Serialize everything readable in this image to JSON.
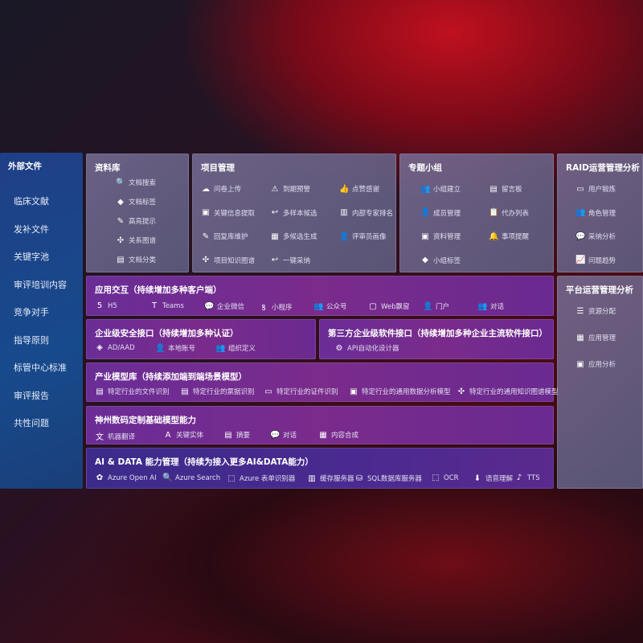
{
  "external": {
    "title": "外部文件",
    "items": [
      "临床文献",
      "发补文件",
      "关键字池",
      "审评培训内容",
      "竞争对手",
      "指导原则",
      "标管中心标准",
      "审评报告",
      "共性问题"
    ]
  },
  "library": {
    "title": "资料库",
    "items": [
      {
        "icon": "doc-search-icon",
        "g": "🔍",
        "label": "文档搜索"
      },
      {
        "icon": "tag-icon",
        "g": "◆",
        "label": "文档标签"
      },
      {
        "icon": "pen-icon",
        "g": "✎",
        "label": "高亮提示"
      },
      {
        "icon": "graph-icon",
        "g": "✣",
        "label": "关系图谱"
      },
      {
        "icon": "doc-classify-icon",
        "g": "▤",
        "label": "文档分类"
      }
    ]
  },
  "project": {
    "title": "项目管理",
    "items": [
      {
        "icon": "cloud-upload-icon",
        "g": "☁",
        "label": "问卷上传"
      },
      {
        "icon": "alarm-icon",
        "g": "⚠",
        "label": "到期预警"
      },
      {
        "icon": "thumbs-up-icon",
        "g": "👍",
        "label": "点赞感谢"
      },
      {
        "icon": "info-extract-icon",
        "g": "▣",
        "label": "关键信息提取"
      },
      {
        "icon": "reply-icon",
        "g": "↩",
        "label": "多样本候选"
      },
      {
        "icon": "ranking-icon",
        "g": "▥",
        "label": "内部专家排名"
      },
      {
        "icon": "edit-icon",
        "g": "✎",
        "label": "回复库维护"
      },
      {
        "icon": "puzzle-icon",
        "g": "▦",
        "label": "多候选生成"
      },
      {
        "icon": "user-icon",
        "g": "👤",
        "label": "评审员画像"
      },
      {
        "icon": "knowledge-graph-icon",
        "g": "✣",
        "label": "项目知识图谱"
      },
      {
        "icon": "reply-icon",
        "g": "↩",
        "label": "一键采纳"
      }
    ]
  },
  "groups": {
    "title": "专题小组",
    "items": [
      {
        "icon": "group-icon",
        "g": "👥",
        "label": "小组建立"
      },
      {
        "icon": "bbs-icon",
        "g": "▤",
        "label": "留言板"
      },
      {
        "icon": "member-icon",
        "g": "👤",
        "label": "成员管理"
      },
      {
        "icon": "clipboard-icon",
        "g": "📋",
        "label": "代办列表"
      },
      {
        "icon": "folder-icon",
        "g": "▣",
        "label": "资料管理"
      },
      {
        "icon": "bell-icon",
        "g": "🔔",
        "label": "事项提醒"
      },
      {
        "icon": "tag-icon",
        "g": "◆",
        "label": "小组标签"
      }
    ]
  },
  "raid": {
    "title": "RAID运营管理分析",
    "items": [
      {
        "icon": "id-card-icon",
        "g": "▭",
        "label": "用户锻炼"
      },
      {
        "icon": "users-icon",
        "g": "👥",
        "label": "角色管理"
      },
      {
        "icon": "qa-icon",
        "g": "💬",
        "label": "采纳分析"
      },
      {
        "icon": "trend-icon",
        "g": "📈",
        "label": "问题趋势"
      }
    ]
  },
  "platform": {
    "title": "平台运营管理分析",
    "items": [
      {
        "icon": "list-icon",
        "g": "☰",
        "label": "资源分配"
      },
      {
        "icon": "apps-icon",
        "g": "▦",
        "label": "应用管理"
      },
      {
        "icon": "chart-icon",
        "g": "▣",
        "label": "应用分析"
      }
    ]
  },
  "interaction": {
    "title": "应用交互（持续增加多种客户端）",
    "items": [
      {
        "icon": "html5-icon",
        "g": "5",
        "label": "H5"
      },
      {
        "icon": "teams-icon",
        "g": "T",
        "label": "Teams"
      },
      {
        "icon": "wecom-icon",
        "g": "💬",
        "label": "企业微信"
      },
      {
        "icon": "miniprogram-icon",
        "g": "ꝸ",
        "label": "小程序"
      },
      {
        "icon": "official-account-icon",
        "g": "👥",
        "label": "公众号"
      },
      {
        "icon": "web-window-icon",
        "g": "▢",
        "label": "Web飘窗"
      },
      {
        "icon": "portal-icon",
        "g": "👤",
        "label": "门户"
      },
      {
        "icon": "dialog-icon",
        "g": "👥",
        "label": "对话"
      }
    ]
  },
  "security": {
    "title": "企业级安全接口（持续增加多种认证）",
    "items": [
      {
        "icon": "ad-icon",
        "g": "◈",
        "label": "AD/AAD"
      },
      {
        "icon": "local-account-icon",
        "g": "👤",
        "label": "本地账号"
      },
      {
        "icon": "org-icon",
        "g": "👥",
        "label": "组织定义"
      }
    ]
  },
  "thirdparty": {
    "title": "第三方企业级软件接口（持续增加多种企业主流软件接口）",
    "items": [
      {
        "icon": "gear-icon",
        "g": "⚙",
        "label": "API自动化设计器"
      }
    ]
  },
  "industry": {
    "title": "产业模型库（持续添加端到端场景模型）",
    "items": [
      {
        "icon": "doc-icon",
        "g": "▤",
        "label": "特定行业的文件识别"
      },
      {
        "icon": "receipt-icon",
        "g": "▤",
        "label": "特定行业的票据识别"
      },
      {
        "icon": "id-card-icon",
        "g": "▭",
        "label": "特定行业的证件识别"
      },
      {
        "icon": "data-analysis-icon",
        "g": "▣",
        "label": "特定行业的通用数据分析模型"
      },
      {
        "icon": "knowledge-graph-icon",
        "g": "✣",
        "label": "特定行业的通用知识图谱模型"
      }
    ]
  },
  "base": {
    "title": "神州数码定制基础模型能力",
    "items": [
      {
        "icon": "translate-icon",
        "g": "文",
        "label": "机器翻译"
      },
      {
        "icon": "entity-icon",
        "g": "A",
        "label": "关键实体"
      },
      {
        "icon": "summary-icon",
        "g": "▤",
        "label": "摘要"
      },
      {
        "icon": "chat-icon",
        "g": "💬",
        "label": "对话"
      },
      {
        "icon": "compose-icon",
        "g": "▦",
        "label": "内容合成"
      }
    ]
  },
  "aidata": {
    "title": "AI & DATA 能力管理（持续为接入更多AI&DATA能力）",
    "items": [
      {
        "icon": "openai-icon",
        "g": "✿",
        "label": "Azure Open AI"
      },
      {
        "icon": "search-icon",
        "g": "🔍",
        "label": "Azure Search"
      },
      {
        "icon": "form-recognizer-icon",
        "g": "⬚",
        "label": "Azure 表单识别器"
      },
      {
        "icon": "cache-server-icon",
        "g": "▥",
        "label": "缓存服务器"
      },
      {
        "icon": "sql-icon",
        "g": "⛁",
        "label": "SQL数据库服务器"
      },
      {
        "icon": "ocr-icon",
        "g": "⬚",
        "label": "OCR"
      },
      {
        "icon": "speech-icon",
        "g": "⬇",
        "label": "语音理解"
      },
      {
        "icon": "tts-icon",
        "g": "♪",
        "label": "TTS"
      }
    ]
  }
}
